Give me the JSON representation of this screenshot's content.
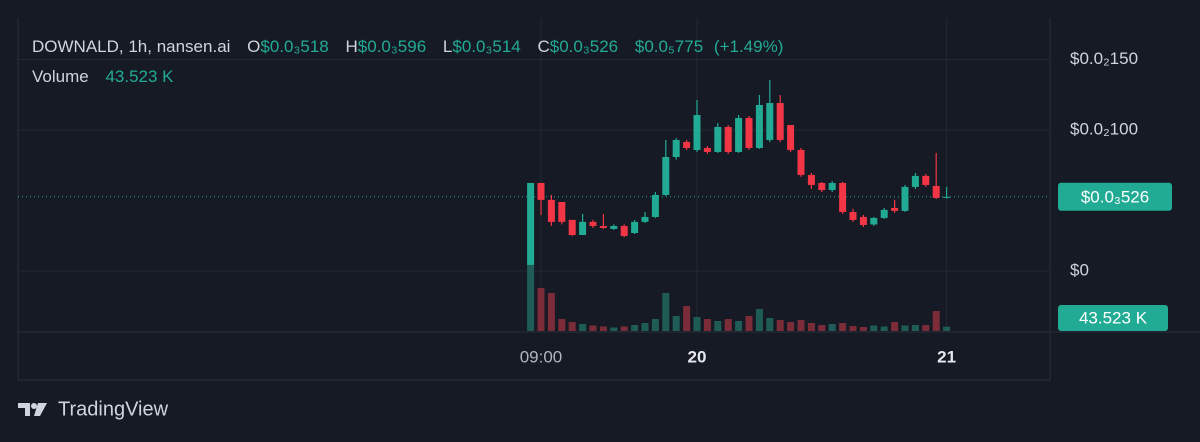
{
  "chart_data": {
    "type": "candlestick",
    "title": "DOWNALD, 1h, nansen.ai",
    "ohlc_legend": {
      "keys": [
        "O",
        "H",
        "L",
        "C"
      ],
      "values": [
        0.000518,
        0.000596,
        0.000514,
        0.000526
      ],
      "value_labels": [
        "$0.0₃518",
        "$0.0₃596",
        "$0.0₃514",
        "$0.0₃526"
      ],
      "change": 7.75e-06,
      "change_label": "$0.0₅775",
      "change_pct": 1.49,
      "change_pct_label": "(+1.49%)"
    },
    "categories": [
      null,
      "09:00",
      null,
      null,
      null,
      null,
      null,
      null,
      null,
      null,
      null,
      null,
      null,
      null,
      null,
      null,
      "20",
      null,
      null,
      null,
      null,
      null,
      null,
      null,
      null,
      null,
      null,
      null,
      null,
      null,
      null,
      null,
      null,
      null,
      null,
      null,
      null,
      null,
      null,
      null,
      "21"
    ],
    "open": [
      4.3e-05,
      0.000624,
      0.000504,
      0.000489,
      0.000362,
      0.000255,
      0.000348,
      0.000319,
      0.000298,
      0.000319,
      0.000269,
      0.000348,
      0.000383,
      0.000539,
      0.000808,
      0.000915,
      0.000858,
      0.000872,
      0.000844,
      0.001021,
      0.000844,
      0.001085,
      0.000872,
      0.000929,
      0.001191,
      0.001035,
      0.000858,
      0.000681,
      0.000624,
      0.000574,
      0.000624,
      0.000418,
      0.000383,
      0.00033,
      0.000376,
      0.000447,
      0.000426,
      0.000596,
      0.000674,
      0.000603,
      0.000518
    ],
    "high": [
      0.000624,
      0.000624,
      0.000539,
      0.000489,
      0.000362,
      0.000404,
      0.000362,
      0.000404,
      0.00033,
      0.00033,
      0.000362,
      0.000418,
      0.00056,
      0.000929,
      0.000943,
      0.000929,
      0.001213,
      0.000886,
      0.001049,
      0.001035,
      0.001106,
      0.001099,
      0.001248,
      0.001355,
      0.001248,
      0.001035,
      0.000872,
      0.000695,
      0.000631,
      0.000638,
      0.000631,
      0.00044,
      0.000397,
      0.000383,
      0.000447,
      0.000504,
      0.00061,
      0.000695,
      0.000688,
      0.000837,
      0.000596
    ],
    "low": [
      4.3e-05,
      0.000397,
      0.000319,
      0.00033,
      0.000248,
      0.000255,
      0.000305,
      0.000298,
      0.000291,
      0.00024,
      0.000262,
      0.00034,
      0.000376,
      0.000532,
      0.00079,
      0.000858,
      0.000844,
      0.00083,
      0.000837,
      0.00083,
      0.000837,
      0.000858,
      0.000865,
      0.000915,
      0.000915,
      0.000844,
      0.000667,
      0.000581,
      0.00056,
      0.00056,
      0.000404,
      0.000348,
      0.000312,
      0.000319,
      0.000369,
      0.000412,
      0.000419,
      0.000581,
      0.000596,
      0.000511,
      0.000514
    ],
    "close": [
      0.000624,
      0.000504,
      0.000348,
      0.000348,
      0.000255,
      0.000348,
      0.000319,
      0.000305,
      0.000319,
      0.000248,
      0.000348,
      0.000383,
      0.000539,
      0.000808,
      0.000929,
      0.000872,
      0.001106,
      0.000844,
      0.001021,
      0.000844,
      0.001085,
      0.000872,
      0.001177,
      0.001191,
      0.000929,
      0.000858,
      0.000681,
      0.00061,
      0.000574,
      0.000624,
      0.000418,
      0.000362,
      0.000326,
      0.000376,
      0.000433,
      0.000426,
      0.000596,
      0.000674,
      0.00061,
      0.000518,
      0.000526
    ],
    "up_color": "#22ab94",
    "down_color": "#f23645",
    "ylim": [
      -0.000433,
      0.001794
    ],
    "yticks": [
      {
        "value": 0.0015,
        "label": "$0.0₂150"
      },
      {
        "value": 0.001,
        "label": "$0.0₂100"
      },
      {
        "value": 0,
        "label": "$0"
      }
    ],
    "grid": true,
    "volume": {
      "name": "Volume",
      "values": [
        700000,
        430000,
        380000,
        120000,
        90000,
        70000,
        55000,
        45000,
        35000,
        45000,
        60000,
        80000,
        120000,
        380000,
        150000,
        250000,
        140000,
        120000,
        100000,
        120000,
        100000,
        150000,
        220000,
        130000,
        110000,
        90000,
        110000,
        80000,
        60000,
        70000,
        80000,
        50000,
        40000,
        55000,
        45000,
        90000,
        55000,
        60000,
        60000,
        200000,
        43523
      ],
      "last_label": "43.523 K",
      "ylim": [
        0,
        1000000
      ],
      "up_color": "#1e5c55",
      "down_color": "#7b2c38"
    }
  },
  "footer": {
    "brand": "TradingView"
  }
}
